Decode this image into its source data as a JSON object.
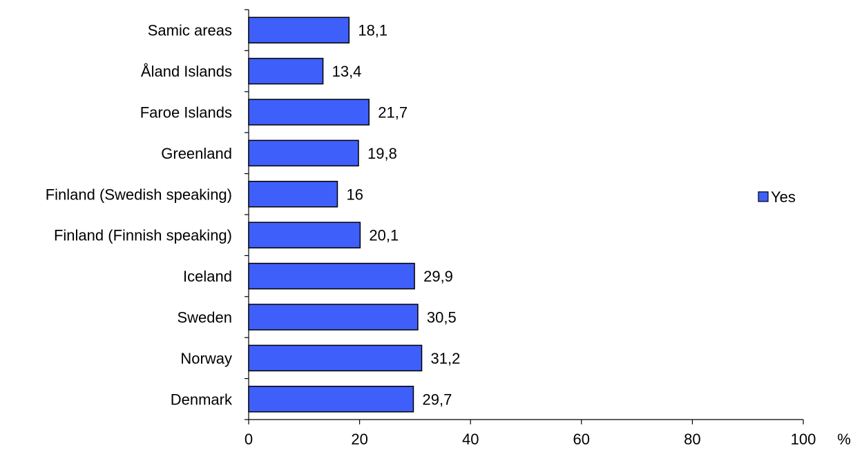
{
  "chart_data": {
    "type": "bar",
    "orientation": "horizontal",
    "categories": [
      "Samic areas",
      "Åland Islands",
      "Faroe Islands",
      "Greenland",
      "Finland (Swedish speaking)",
      "Finland (Finnish speaking)",
      "Iceland",
      "Sweden",
      "Norway",
      "Denmark"
    ],
    "series": [
      {
        "name": "Yes",
        "values": [
          18.1,
          13.4,
          21.7,
          19.8,
          16,
          20.1,
          29.9,
          30.5,
          31.2,
          29.7
        ],
        "value_labels": [
          "18,1",
          "13,4",
          "21,7",
          "19,8",
          "16",
          "20,1",
          "29,9",
          "30,5",
          "31,2",
          "29,7"
        ]
      }
    ],
    "xlim": [
      0,
      100
    ],
    "xticks": [
      0,
      20,
      40,
      60,
      80,
      100
    ],
    "xunit": "%",
    "grid": false,
    "legend_position": "right",
    "colors": {
      "bar": "#3f5ffa",
      "bar_outline": "#000000",
      "axis": "#000000"
    }
  }
}
